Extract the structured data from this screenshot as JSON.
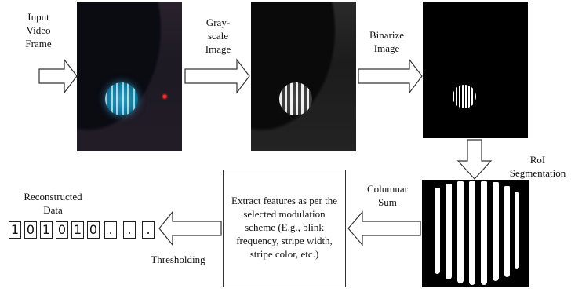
{
  "labels": {
    "input": "Input\nVideo\nFrame",
    "gray": "Gray-\nscale\nImage",
    "binarize": "Binarize\nImage",
    "roi": "RoI\nSegmentation",
    "columnar": "Columnar\nSum",
    "extract": "Extract features as per the selected modulation scheme (E.g., blink frequency, stripe width, stripe color, etc.)",
    "reconstructed": "Reconstructed\nData",
    "thresholding": "Thresholding"
  },
  "bits": [
    "1",
    "0",
    "1",
    "0",
    "1",
    "0",
    ".",
    ".",
    "."
  ]
}
